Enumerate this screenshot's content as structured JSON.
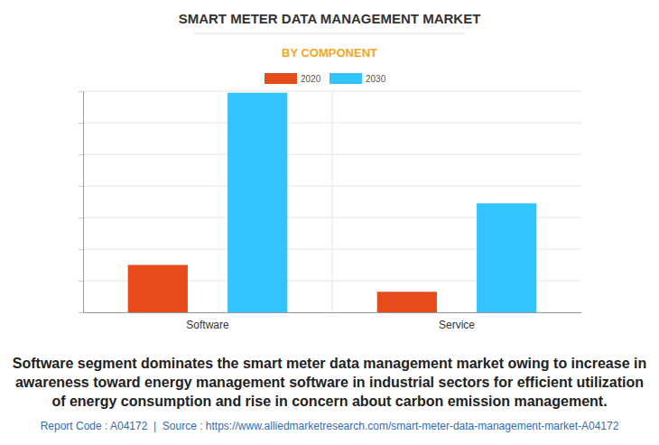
{
  "chart_data": {
    "type": "bar",
    "title": "SMART METER DATA MANAGEMENT MARKET",
    "subtitle": "BY COMPONENT",
    "categories": [
      "Software",
      "Service"
    ],
    "series": [
      {
        "name": "2020",
        "color": "#e54b1b",
        "values": [
          1.5,
          0.65
        ]
      },
      {
        "name": "2030",
        "color": "#33c4ff",
        "values": [
          6.95,
          3.45
        ]
      }
    ],
    "ylim": [
      0,
      7
    ],
    "yticks": [
      0,
      1,
      2,
      3,
      4,
      5,
      6,
      7
    ],
    "grid": true,
    "tick_labels": "x",
    "legend": "top",
    "annotations": [
      "Software segment dominates the smart meter data management market owing to increase in awareness toward energy management software in industrial sectors for efficient utilization of energy consumption and rise in concern about carbon emission management.",
      "Report Code : A04172  |  Source : https://www.alliedmarketresearch.com/smart-meter-data-management-market-A04172"
    ]
  }
}
